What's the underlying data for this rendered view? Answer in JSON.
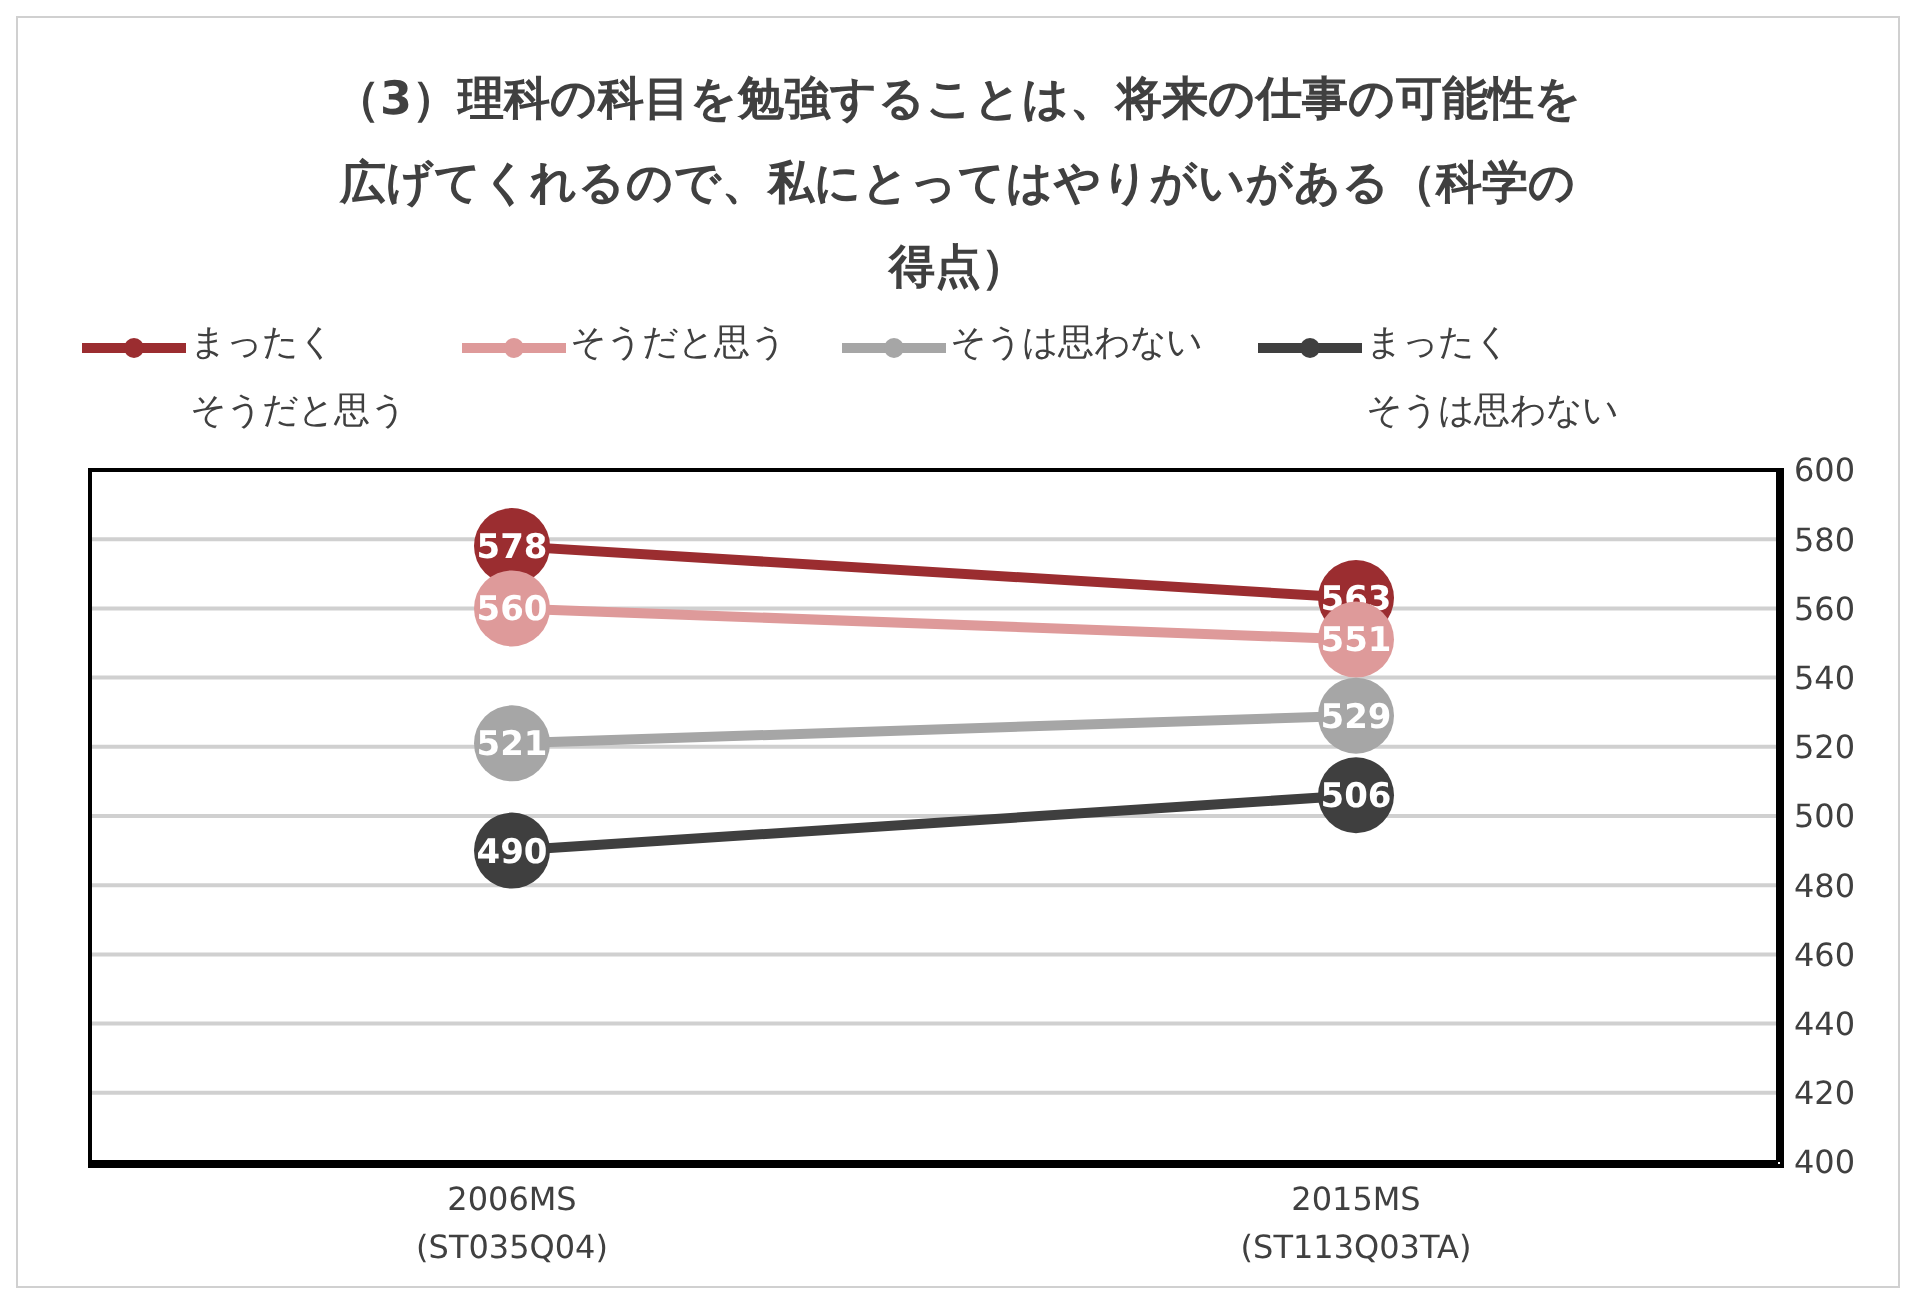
{
  "chart_data": {
    "type": "line",
    "title": "（3）理科の科目を勉強することは、将来の仕事の可能性を広げてくれるので、私にとってはやりがいがある（科学の得点）",
    "categories": [
      "2006MS\n(ST035Q04)",
      "2015MS\n(ST113Q03TA)"
    ],
    "series": [
      {
        "name": "まったくそうだと思う",
        "color": "#9b2d30",
        "values": [
          578,
          563
        ]
      },
      {
        "name": "そうだと思う",
        "color": "#de9a9a",
        "values": [
          560,
          551
        ]
      },
      {
        "name": "そうは思わない",
        "color": "#a6a6a6",
        "values": [
          521,
          529
        ]
      },
      {
        "name": "まったくそうは思わない",
        "color": "#3f3f3f",
        "values": [
          490,
          506
        ]
      }
    ],
    "ylim": [
      400,
      600
    ],
    "yticks": [
      400,
      420,
      440,
      460,
      480,
      500,
      520,
      540,
      560,
      580,
      600
    ],
    "grid": "y",
    "legend": "top",
    "marker": "circle",
    "data_labels": true,
    "line_style": "solid"
  }
}
